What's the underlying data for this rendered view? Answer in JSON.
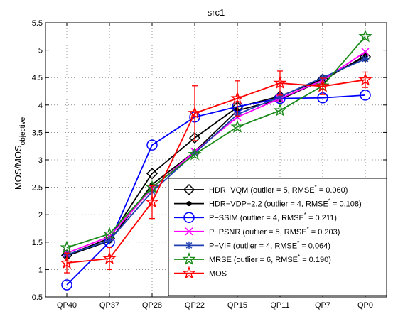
{
  "chart_data": {
    "type": "line",
    "title": "src1",
    "xlabel": "",
    "ylabel_main": "MOS/MOS",
    "ylabel_sub": "objective",
    "categories": [
      "QP40",
      "QP37",
      "QP28",
      "QP22",
      "QP15",
      "QP11",
      "QP7",
      "QP0"
    ],
    "ylim": [
      0.5,
      5.5
    ],
    "yticks": [
      "0.5",
      "1",
      "1.5",
      "2",
      "2.5",
      "3",
      "3.5",
      "4",
      "4.5",
      "5",
      "5.5"
    ],
    "grid": true,
    "legend_position": "bottom-right",
    "series": [
      {
        "name": "HDR−VQM (outlier = 5, RMSE* = 0.060)",
        "legend_pre": "HDR−VQM (outlier = 5, RMSE",
        "legend_post": " = 0.060)",
        "color": "#000000",
        "marker": "diamond",
        "values": [
          1.26,
          1.57,
          2.75,
          3.4,
          3.96,
          4.16,
          4.47,
          4.88
        ]
      },
      {
        "name": "HDR−VDP−2.2 (outlier = 4, RMSE* = 0.108)",
        "legend_pre": "HDR−VDP−2.2 (outlier = 4, RMSE",
        "legend_post": " = 0.108)",
        "color": "#000000",
        "marker": "dot",
        "values": [
          1.25,
          1.52,
          2.55,
          3.15,
          3.9,
          4.1,
          4.45,
          4.9
        ]
      },
      {
        "name": "P−SSIM (outlier = 4, RMSE* = 0.211)",
        "legend_pre": "P−SSIM (outlier = 4, RMSE",
        "legend_post": " = 0.211)",
        "color": "#0000ff",
        "marker": "circle",
        "values": [
          0.72,
          1.5,
          3.27,
          3.78,
          3.97,
          4.12,
          4.13,
          4.18
        ]
      },
      {
        "name": "P−PSNR (outlier = 5, RMSE* = 0.203)",
        "legend_pre": "P−PSNR (outlier = 5, RMSE",
        "legend_post": " = 0.203)",
        "color": "#ff00ff",
        "marker": "x",
        "values": [
          1.3,
          1.6,
          2.48,
          3.15,
          3.78,
          4.12,
          4.45,
          4.97
        ]
      },
      {
        "name": "P−VIF (outlier = 4, RMSE* = 0.064)",
        "legend_pre": "P−VIF (outlier = 4, RMSE",
        "legend_post": " = 0.064)",
        "color": "#1f3fb0",
        "marker": "asterisk",
        "values": [
          1.27,
          1.53,
          2.42,
          3.12,
          3.83,
          4.15,
          4.5,
          4.84
        ]
      },
      {
        "name": "MRSE (outlier = 6, RMSE* = 0.190)",
        "legend_pre": "MRSE (outlier = 6, RMSE",
        "legend_post": " = 0.190)",
        "color": "#1a8a1a",
        "marker": "star",
        "values": [
          1.4,
          1.65,
          2.5,
          3.1,
          3.6,
          3.9,
          4.35,
          5.25
        ]
      },
      {
        "name": "MOS",
        "legend_pre": "MOS",
        "legend_post": "",
        "color": "#ff0000",
        "marker": "star",
        "values": [
          1.12,
          1.2,
          2.23,
          3.85,
          4.12,
          4.4,
          4.34,
          4.46
        ],
        "error": [
          0.18,
          0.2,
          0.3,
          0.5,
          0.32,
          0.22,
          0.15,
          0.14
        ]
      }
    ]
  }
}
